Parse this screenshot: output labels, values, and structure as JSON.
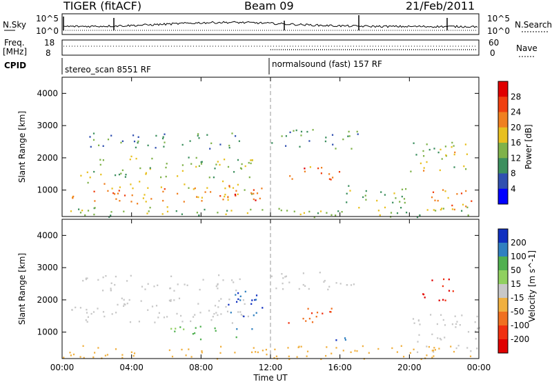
{
  "header": {
    "station": "TIGER (fitACF)",
    "beam": "Beam 09",
    "date": "21/Feb/2011"
  },
  "top_panels": {
    "nsky_label": "N.Sky",
    "nsky_ticks": [
      "10^5",
      "10^0"
    ],
    "nsearch_label": "N.Search",
    "nsearch_ticks": [
      "10^5",
      "10^0"
    ],
    "freq_label": [
      "Freq.",
      "[MHz]"
    ],
    "freq_ticks": [
      "18",
      "8"
    ],
    "nave_label": "Nave",
    "nave_ticks": [
      "60",
      "0"
    ],
    "cpid_label": "CPID",
    "cpid_segments": [
      "stereo_scan 8551 RF",
      "normalsound (fast) 157 RF"
    ]
  },
  "chart_data": [
    {
      "type": "heatmap",
      "title": "",
      "xlabel": "Time UT",
      "ylabel": "Slant Range [km]",
      "x_ticks": [
        "00:00",
        "04:00",
        "08:00",
        "12:00",
        "16:00",
        "20:00",
        "00:00"
      ],
      "xlim_hours": [
        0,
        24
      ],
      "y_ticks": [
        1000,
        2000,
        3000,
        4000
      ],
      "ylim": [
        180,
        4500
      ],
      "colorbar": {
        "label": "Power [dB]",
        "ticks": [
          4,
          8,
          12,
          16,
          20,
          24,
          28
        ],
        "colors": [
          "#0000ff",
          "#3050b0",
          "#3c8f5e",
          "#7fb24a",
          "#e8c020",
          "#f08020",
          "#f04010",
          "#e00000"
        ]
      },
      "mode_change_hour": 12,
      "scatter_bands": [
        {
          "t0": 0.5,
          "t1": 11.5,
          "r0": 600,
          "r1": 1300,
          "level": 20
        },
        {
          "t0": 1.0,
          "t1": 11.0,
          "r0": 1400,
          "r1": 2100,
          "level": 14
        },
        {
          "t0": 1.5,
          "t1": 10.5,
          "r0": 2300,
          "r1": 2800,
          "level": 10
        },
        {
          "t0": 9.0,
          "t1": 11.5,
          "r0": 700,
          "r1": 1100,
          "level": 28
        },
        {
          "t0": 13.0,
          "t1": 16.0,
          "r0": 1300,
          "r1": 1800,
          "level": 24
        },
        {
          "t0": 12.0,
          "t1": 17.0,
          "r0": 2300,
          "r1": 2900,
          "level": 10
        },
        {
          "t0": 16.0,
          "t1": 20.0,
          "r0": 600,
          "r1": 1200,
          "level": 12
        },
        {
          "t0": 20.0,
          "t1": 23.5,
          "r0": 1600,
          "r1": 2600,
          "level": 16
        },
        {
          "t0": 21.0,
          "t1": 24.0,
          "r0": 400,
          "r1": 1100,
          "level": 22
        },
        {
          "t0": 0.0,
          "t1": 24.0,
          "r0": 180,
          "r1": 500,
          "level": 14
        }
      ]
    },
    {
      "type": "heatmap",
      "title": "",
      "xlabel": "Time UT",
      "ylabel": "Slant Range [km]",
      "x_ticks": [
        "00:00",
        "04:00",
        "08:00",
        "12:00",
        "16:00",
        "20:00",
        "00:00"
      ],
      "xlim_hours": [
        0,
        24
      ],
      "y_ticks": [
        1000,
        2000,
        3000,
        4000
      ],
      "ylim": [
        180,
        4500
      ],
      "colorbar": {
        "label": "Velocity [m s^-1]",
        "ticks": [
          200,
          100,
          50,
          15,
          -15,
          -50,
          -100,
          -200
        ],
        "colors": [
          "#1030c0",
          "#3080c0",
          "#50b050",
          "#90d060",
          "#c8c8c8",
          "#f0b040",
          "#f07020",
          "#f03010",
          "#e00000"
        ]
      },
      "mode_change_hour": 12,
      "scatter_bands": [
        {
          "t0": 0.5,
          "t1": 11.0,
          "r0": 1300,
          "r1": 2100,
          "level": 0
        },
        {
          "t0": 1.0,
          "t1": 10.5,
          "r0": 2300,
          "r1": 2800,
          "level": 0
        },
        {
          "t0": 6.0,
          "t1": 10.0,
          "r0": 800,
          "r1": 1200,
          "level": 60
        },
        {
          "t0": 9.5,
          "t1": 11.5,
          "r0": 1100,
          "r1": 2300,
          "level": 200
        },
        {
          "t0": 13.0,
          "t1": 16.0,
          "r0": 1300,
          "r1": 1800,
          "level": -100
        },
        {
          "t0": 12.0,
          "t1": 17.0,
          "r0": 2300,
          "r1": 2900,
          "level": 0
        },
        {
          "t0": 14.0,
          "t1": 17.0,
          "r0": 750,
          "r1": 850,
          "level": 200
        },
        {
          "t0": 20.5,
          "t1": 22.5,
          "r0": 2000,
          "r1": 2700,
          "level": -200
        },
        {
          "t0": 20.0,
          "t1": 24.0,
          "r0": 400,
          "r1": 1600,
          "level": 0
        },
        {
          "t0": 0.0,
          "t1": 24.0,
          "r0": 180,
          "r1": 600,
          "level": -30
        }
      ]
    }
  ]
}
